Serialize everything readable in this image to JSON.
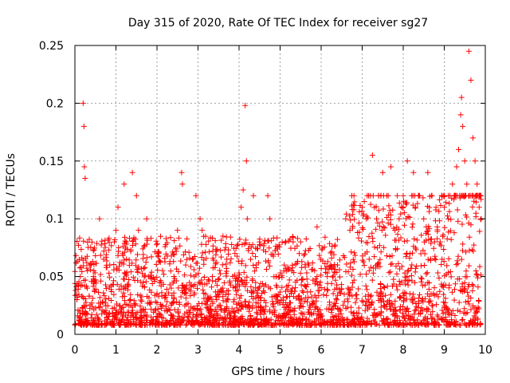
{
  "chart_data": {
    "type": "scatter",
    "title": "Day 315 of 2020, Rate Of TEC Index for receiver sg27",
    "xlabel": "GPS time / hours",
    "ylabel": "ROTI / TECUs",
    "xlim": [
      0,
      10
    ],
    "ylim": [
      0,
      0.25
    ],
    "xticks": [
      "0",
      "1",
      "2",
      "3",
      "4",
      "5",
      "6",
      "7",
      "8",
      "9",
      "10"
    ],
    "yticks": [
      "0",
      "0.05",
      "0.1",
      "0.15",
      "0.2",
      "0.25"
    ],
    "grid": true,
    "marker": "+",
    "color": "#ff0000",
    "series": [
      {
        "name": "sg27",
        "x": [
          0.05,
          0.12,
          0.2,
          0.22,
          0.23,
          0.25,
          0.3,
          0.45,
          0.6,
          0.7,
          0.85,
          1.0,
          1.05,
          1.2,
          1.25,
          1.4,
          1.5,
          1.55,
          1.75,
          1.8,
          2.1,
          2.35,
          2.5,
          2.6,
          2.62,
          2.7,
          2.95,
          3.05,
          3.1,
          3.35,
          3.6,
          3.9,
          4.05,
          4.1,
          4.15,
          4.18,
          4.2,
          4.35,
          4.5,
          4.7,
          4.75,
          4.9,
          5.1,
          5.3,
          5.5,
          5.7,
          5.9,
          6.15,
          6.4,
          6.6,
          6.7,
          6.8,
          7.0,
          7.05,
          7.1,
          7.25,
          7.35,
          7.4,
          7.5,
          7.7,
          7.8,
          7.9,
          8.0,
          8.1,
          8.25,
          8.3,
          8.4,
          8.5,
          8.6,
          8.7,
          8.8,
          8.9,
          9.0,
          9.1,
          9.2,
          9.3,
          9.35,
          9.4,
          9.42,
          9.45,
          9.5,
          9.55,
          9.6,
          9.65,
          9.7,
          9.75,
          9.8,
          9.85,
          9.9
        ],
        "y": [
          0.03,
          0.02,
          0.2,
          0.18,
          0.145,
          0.135,
          0.04,
          0.05,
          0.1,
          0.065,
          0.06,
          0.09,
          0.11,
          0.13,
          0.08,
          0.14,
          0.12,
          0.09,
          0.1,
          0.05,
          0.045,
          0.04,
          0.09,
          0.14,
          0.13,
          0.06,
          0.12,
          0.1,
          0.09,
          0.05,
          0.04,
          0.07,
          0.11,
          0.125,
          0.198,
          0.15,
          0.1,
          0.12,
          0.08,
          0.12,
          0.1,
          0.05,
          0.06,
          0.04,
          0.08,
          0.06,
          0.093,
          0.05,
          0.06,
          0.1,
          0.09,
          0.12,
          0.11,
          0.115,
          0.1,
          0.155,
          0.1,
          0.12,
          0.14,
          0.145,
          0.09,
          0.1,
          0.12,
          0.15,
          0.14,
          0.11,
          0.12,
          0.1,
          0.14,
          0.12,
          0.11,
          0.08,
          0.12,
          0.1,
          0.13,
          0.145,
          0.16,
          0.19,
          0.205,
          0.18,
          0.15,
          0.13,
          0.245,
          0.22,
          0.17,
          0.15,
          0.13,
          0.11,
          0.1
        ]
      }
    ]
  }
}
